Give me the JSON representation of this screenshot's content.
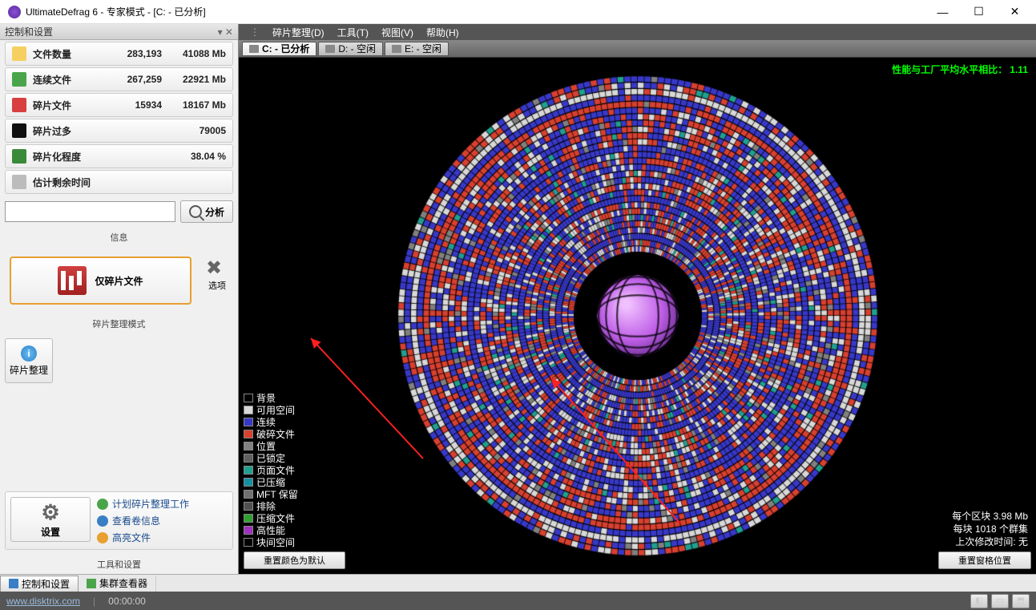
{
  "window": {
    "title": "UltimateDefrag 6 - 专家模式 - [C: - 已分析]"
  },
  "sidebar": {
    "header": "控制和设置",
    "stats": [
      {
        "icon_bg": "#f5d060",
        "label": "文件数量",
        "v1": "283,193",
        "v2": "41088 Mb"
      },
      {
        "icon_bg": "#4aa54a",
        "label": "连续文件",
        "v1": "267,259",
        "v2": "22921 Mb"
      },
      {
        "icon_bg": "#d84040",
        "label": "碎片文件",
        "v1": "15934",
        "v2": "18167 Mb"
      },
      {
        "icon_bg": "#101010",
        "label": "碎片过多",
        "v1": "",
        "v2": "79005"
      },
      {
        "icon_bg": "#3a8a3a",
        "label": "碎片化程度",
        "v1": "",
        "v2": "38.04 %"
      },
      {
        "icon_bg": "#bcbcbc",
        "label": "估计剩余时间",
        "v1": "",
        "v2": ""
      }
    ],
    "analyze_btn": "分析",
    "info_label": "信息",
    "frag_only_btn": "仅碎片文件",
    "options_label": "选项",
    "mode_label": "碎片整理模式",
    "defrag_label": "碎片整理",
    "settings_label": "设置",
    "tools_label": "工具和设置",
    "tool_links": [
      {
        "color": "#4aa54a",
        "text": "计划碎片整理工作"
      },
      {
        "color": "#3a7fc5",
        "text": "查看卷信息"
      },
      {
        "color": "#e8a030",
        "text": "高亮文件"
      }
    ]
  },
  "menu": {
    "items": [
      "碎片整理(D)",
      "工具(T)",
      "视图(V)",
      "帮助(H)"
    ]
  },
  "drives": [
    {
      "label": "C: - 已分析",
      "active": true
    },
    {
      "label": "D: - 空闲",
      "active": false
    },
    {
      "label": "E: - 空闲",
      "active": false
    }
  ],
  "perf": {
    "label": "性能与工厂平均水平相比：",
    "value": "1.11"
  },
  "legend": [
    {
      "color": "#000000",
      "label": "背景"
    },
    {
      "color": "#d8d8d8",
      "label": "可用空间"
    },
    {
      "color": "#3838c8",
      "label": "连续"
    },
    {
      "color": "#d84030",
      "label": "破碎文件"
    },
    {
      "color": "#808080",
      "label": "位置"
    },
    {
      "color": "#606060",
      "label": "已锁定"
    },
    {
      "color": "#20a090",
      "label": "页面文件"
    },
    {
      "color": "#1590a0",
      "label": "已压缩"
    },
    {
      "color": "#707070",
      "label": "MFT 保留"
    },
    {
      "color": "#505050",
      "label": "排除"
    },
    {
      "color": "#30a030",
      "label": "压缩文件"
    },
    {
      "color": "#a030c0",
      "label": "高性能"
    },
    {
      "color": "#ffffff",
      "label": "块间空间",
      "border_only": true
    }
  ],
  "disk_info": {
    "block_size": "每个区块 3.98 Mb",
    "clusters": "每块 1018 个群集",
    "last_mod": "上次修改时间:  无"
  },
  "buttons": {
    "reset_colors": "重置颜色为默认",
    "reset_window": "重置窗格位置"
  },
  "bottom_tabs": [
    {
      "label": "控制和设置",
      "color": "#3a7fc5",
      "active": true
    },
    {
      "label": "集群查看器",
      "color": "#4aa54a",
      "active": false
    }
  ],
  "status": {
    "url": "www.disktrix.com",
    "time": "00:00:00"
  },
  "disk_viz": {
    "outer_radius": 300,
    "inner_radius": 80,
    "rings": 28,
    "segments": 220,
    "bg": "#000000",
    "palette": [
      "#3838c8",
      "#d84030",
      "#d8d8d8",
      "#808080",
      "#20a090"
    ],
    "weights": [
      0.4,
      0.3,
      0.2,
      0.06,
      0.04
    ],
    "hub_color": "#c060e8",
    "hub_highlight": "#f0c0ff"
  }
}
